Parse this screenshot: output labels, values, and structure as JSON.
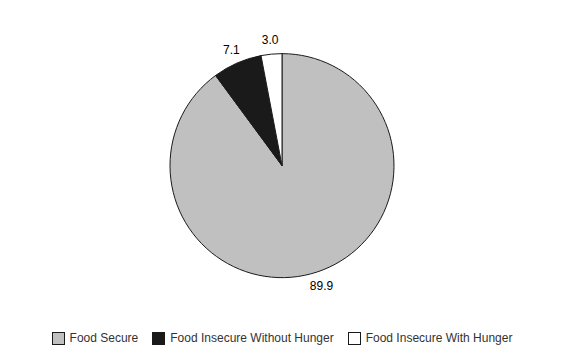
{
  "chart_data": {
    "type": "pie",
    "categories": [
      "Food Secure",
      "Food Insecure Without Hunger",
      "Food Insecure With Hunger"
    ],
    "values": [
      89.9,
      7.1,
      3.0
    ],
    "value_labels": [
      "89.9",
      "7.1",
      "3.0"
    ],
    "colors": [
      "#c0c0c0",
      "#1a1a1a",
      "#ffffff"
    ],
    "data_labels": true,
    "legend": "bottom"
  }
}
